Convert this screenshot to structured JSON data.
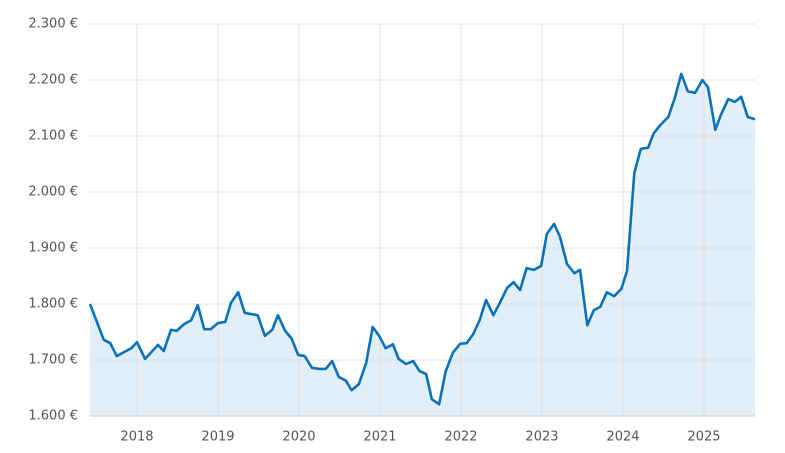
{
  "chart_data": {
    "type": "area",
    "x": [
      2017.42,
      2017.59,
      2017.67,
      2017.75,
      2017.84,
      2017.93,
      2018.0,
      2018.1,
      2018.19,
      2018.26,
      2018.33,
      2018.42,
      2018.49,
      2018.58,
      2018.67,
      2018.75,
      2018.83,
      2018.91,
      2019.0,
      2019.09,
      2019.16,
      2019.25,
      2019.33,
      2019.41,
      2019.49,
      2019.58,
      2019.67,
      2019.74,
      2019.83,
      2019.91,
      2019.99,
      2020.07,
      2020.16,
      2020.25,
      2020.33,
      2020.41,
      2020.49,
      2020.58,
      2020.65,
      2020.74,
      2020.83,
      2020.91,
      2020.99,
      2021.07,
      2021.16,
      2021.23,
      2021.32,
      2021.41,
      2021.49,
      2021.57,
      2021.64,
      2021.73,
      2021.81,
      2021.9,
      2021.99,
      2022.07,
      2022.15,
      2022.23,
      2022.31,
      2022.4,
      2022.48,
      2022.57,
      2022.65,
      2022.73,
      2022.81,
      2022.9,
      2022.99,
      2023.06,
      2023.15,
      2023.22,
      2023.31,
      2023.4,
      2023.47,
      2023.56,
      2023.64,
      2023.72,
      2023.8,
      2023.89,
      2023.98,
      2024.05,
      2024.14,
      2024.22,
      2024.31,
      2024.38,
      2024.47,
      2024.56,
      2024.64,
      2024.72,
      2024.8,
      2024.89,
      2024.98,
      2025.05,
      2025.14,
      2025.21,
      2025.3,
      2025.38,
      2025.46,
      2025.54,
      2025.63
    ],
    "series": [
      {
        "color": "#0b72b9",
        "fill": "#e3eff8",
        "values": [
          1800,
          1736,
          1730,
          1707,
          1714,
          1721,
          1732,
          1702,
          1716,
          1727,
          1716,
          1754,
          1752,
          1764,
          1771,
          1798,
          1755,
          1755,
          1766,
          1768,
          1802,
          1821,
          1784,
          1782,
          1780,
          1743,
          1754,
          1780,
          1752,
          1738,
          1709,
          1707,
          1686,
          1684,
          1684,
          1698,
          1670,
          1663,
          1646,
          1657,
          1695,
          1759,
          1743,
          1721,
          1728,
          1702,
          1693,
          1698,
          1680,
          1675,
          1630,
          1621,
          1679,
          1713,
          1729,
          1730,
          1746,
          1771,
          1807,
          1780,
          1802,
          1829,
          1839,
          1825,
          1864,
          1861,
          1868,
          1925,
          1943,
          1921,
          1871,
          1855,
          1861,
          1762,
          1789,
          1795,
          1821,
          1814,
          1827,
          1859,
          2034,
          2077,
          2079,
          2105,
          2121,
          2134,
          2168,
          2211,
          2180,
          2177,
          2200,
          2187,
          2111,
          2138,
          2166,
          2161,
          2170,
          2134,
          2130
        ]
      }
    ],
    "xlim": [
      2017.42,
      2025.63
    ],
    "xticks": [
      2018,
      2019,
      2020,
      2021,
      2022,
      2023,
      2024,
      2025
    ],
    "ylim": [
      1600,
      2300
    ],
    "yticks": [
      {
        "value": 1600,
        "label": "1.600 €"
      },
      {
        "value": 1700,
        "label": "1.700 €"
      },
      {
        "value": 1800,
        "label": "1.800 €"
      },
      {
        "value": 1900,
        "label": "1.900 €"
      },
      {
        "value": 2000,
        "label": "2.000 €"
      },
      {
        "value": 2100,
        "label": "2.100 €"
      },
      {
        "value": 2200,
        "label": "2.200 €"
      },
      {
        "value": 2300,
        "label": "2.300 €"
      }
    ],
    "grid": true
  }
}
